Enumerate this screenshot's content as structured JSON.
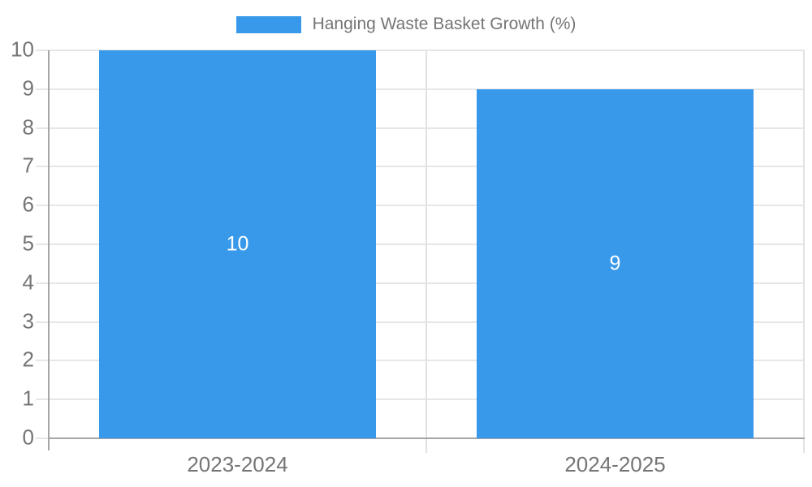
{
  "legend": {
    "label": "Hanging Waste Basket Growth (%)"
  },
  "colors": {
    "bar": "#3899EB",
    "text": "#757575",
    "value_label": "#FFFFFF",
    "axis_line": "#A5A5A5",
    "gridline": "#E6E6E6",
    "divider": "#E2E2E2",
    "background": "#FFFFFF"
  },
  "chart_data": {
    "type": "bar",
    "categories": [
      "2023-2024",
      "2024-2025"
    ],
    "series": [
      {
        "name": "Hanging Waste Basket Growth (%)",
        "values": [
          10,
          9
        ]
      }
    ],
    "title": "",
    "xlabel": "",
    "ylabel": "",
    "ylim": [
      0,
      10
    ],
    "yticks": [
      0,
      1,
      2,
      3,
      4,
      5,
      6,
      7,
      8,
      9,
      10
    ],
    "grid": true,
    "legend_position": "top-center",
    "bar_value_labels": [
      10,
      9
    ],
    "bar_value_label_position": "center"
  }
}
